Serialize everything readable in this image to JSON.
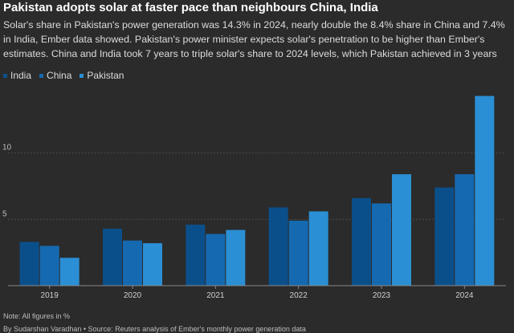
{
  "title": "Pakistan adopts solar at faster pace than neighbours China, India",
  "subtitle": "Solar's share in Pakistan's power generation was 14.3% in 2024, nearly double the 8.4% share in China and 7.4% in India, Ember data showed. Pakistan's power minister expects solar's penetration to be higher than Ember's estimates. China and India took 7 years to triple solar's share to 2024 levels, which Pakistan achieved in 3 years",
  "note": "Note: All figures in %",
  "source": "By Sudarshan Varadhan • Source: Reuters analysis of Ember's monthly power generation data",
  "chart_data": {
    "type": "bar",
    "title": "",
    "xlabel": "",
    "ylabel": "",
    "categories": [
      "2019",
      "2020",
      "2021",
      "2022",
      "2023",
      "2024"
    ],
    "series": [
      {
        "name": "India",
        "color": "#0b4f8a",
        "values": [
          3.3,
          4.3,
          4.6,
          5.9,
          6.6,
          7.4
        ]
      },
      {
        "name": "China",
        "color": "#1569b0",
        "values": [
          3.0,
          3.4,
          3.9,
          4.9,
          6.2,
          8.4
        ]
      },
      {
        "name": "Pakistan",
        "color": "#2a8fd4",
        "values": [
          2.1,
          3.2,
          4.2,
          5.6,
          8.4,
          14.3
        ]
      }
    ],
    "ylim": [
      0,
      15
    ],
    "yticks": [
      "5",
      "10"
    ],
    "grid": true,
    "legend": "top-left"
  }
}
